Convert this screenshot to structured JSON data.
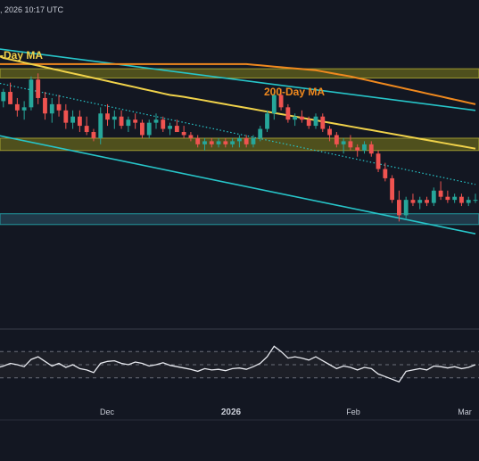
{
  "header": {
    "timestamp": ", 2026 10:17 UTC"
  },
  "chart_data": {
    "type": "candlestick",
    "ma_labels": {
      "ma100": "-Day MA",
      "ma200": "200-Day MA"
    },
    "x_ticks": [
      "Dec",
      "2026",
      "Feb",
      "Mar"
    ],
    "colors": {
      "background": "#131722",
      "bull": "#26a69a",
      "bear": "#ef5350",
      "ma100": "#f0d24a",
      "ma200": "#f0891e",
      "channel": "#27c5c9",
      "zone_fill": "#5b5a1c",
      "zone_border": "#c9c03a",
      "support_zone_fill": "#26495a",
      "rsi_line": "#e8eaf0",
      "rsi_fill": "#1d1f27",
      "grid_dash": "#6b6f7a",
      "axis_text": "#c8ccd6"
    },
    "price_range": [
      0,
      100
    ],
    "zones": [
      {
        "name": "resistance-zone",
        "from": 80.5,
        "to": 83.5
      },
      {
        "name": "mid-zone",
        "from": 57,
        "to": 61
      },
      {
        "name": "support-zone",
        "from": 33,
        "to": 36.5
      }
    ],
    "candles": [
      [
        75,
        78,
        70,
        73
      ],
      [
        73,
        77,
        71,
        76
      ],
      [
        76,
        79,
        72,
        72
      ],
      [
        72,
        74,
        68,
        70
      ],
      [
        70,
        73,
        67,
        71
      ],
      [
        71,
        81,
        70,
        80
      ],
      [
        80,
        82,
        72,
        74
      ],
      [
        74,
        76,
        67,
        69
      ],
      [
        69,
        74,
        66,
        72
      ],
      [
        72,
        75,
        68,
        70
      ],
      [
        70,
        72,
        64,
        66
      ],
      [
        66,
        70,
        64,
        68
      ],
      [
        68,
        70,
        63,
        65
      ],
      [
        65,
        68,
        62,
        63
      ],
      [
        63,
        64,
        60,
        61
      ],
      [
        61,
        71,
        59,
        69
      ],
      [
        69,
        72,
        65,
        67
      ],
      [
        67,
        70,
        64,
        68
      ],
      [
        68,
        70,
        64,
        65
      ],
      [
        65,
        68,
        63,
        67
      ],
      [
        67,
        69,
        64,
        66
      ],
      [
        66,
        67,
        61,
        62
      ],
      [
        62,
        67,
        61,
        66
      ],
      [
        66,
        69,
        64,
        67
      ],
      [
        67,
        68,
        63,
        64
      ],
      [
        64,
        66,
        62,
        65
      ],
      [
        65,
        67,
        63,
        63
      ],
      [
        63,
        65,
        61,
        62
      ],
      [
        62,
        63,
        60,
        61
      ],
      [
        61,
        62,
        58,
        59
      ],
      [
        59,
        61,
        57,
        60
      ],
      [
        60,
        61,
        58,
        59
      ],
      [
        59,
        61,
        58,
        60
      ],
      [
        60,
        61,
        58,
        59
      ],
      [
        59,
        61,
        58,
        60
      ],
      [
        60,
        62,
        58,
        61
      ],
      [
        61,
        62,
        58,
        59
      ],
      [
        59,
        62,
        58,
        61
      ],
      [
        61,
        65,
        60,
        64
      ],
      [
        64,
        70,
        63,
        69
      ],
      [
        69,
        76,
        67,
        75
      ],
      [
        75,
        77,
        70,
        71
      ],
      [
        71,
        72,
        66,
        67
      ],
      [
        67,
        69,
        65,
        68
      ],
      [
        68,
        70,
        66,
        67
      ],
      [
        67,
        68,
        64,
        65
      ],
      [
        65,
        69,
        64,
        68
      ],
      [
        68,
        69,
        63,
        64
      ],
      [
        64,
        65,
        60,
        62
      ],
      [
        62,
        63,
        58,
        59
      ],
      [
        59,
        61,
        56,
        60
      ],
      [
        60,
        62,
        57,
        58
      ],
      [
        58,
        59,
        55,
        57
      ],
      [
        57,
        60,
        56,
        59
      ],
      [
        59,
        60,
        55,
        56
      ],
      [
        56,
        57,
        50,
        51
      ],
      [
        51,
        53,
        47,
        48
      ],
      [
        48,
        49,
        40,
        41
      ],
      [
        41,
        44,
        34,
        36
      ],
      [
        36,
        42,
        35,
        41
      ],
      [
        41,
        43,
        39,
        40
      ],
      [
        40,
        42,
        38,
        41
      ],
      [
        41,
        42,
        39,
        40
      ],
      [
        40,
        45,
        39,
        44
      ],
      [
        44,
        47,
        41,
        42
      ],
      [
        42,
        44,
        40,
        41
      ],
      [
        41,
        43,
        40,
        42
      ],
      [
        42,
        43,
        39,
        40
      ],
      [
        40,
        42,
        39,
        41
      ],
      [
        41,
        43,
        40,
        41
      ]
    ],
    "channel_lines": [
      {
        "name": "upper-channel-line",
        "points": [
          [
            0,
            90
          ],
          [
            69,
            70
          ]
        ]
      },
      {
        "name": "lower-channel-line",
        "points": [
          [
            0,
            62
          ],
          [
            69,
            30
          ]
        ]
      }
    ],
    "dotted_trendline": {
      "points": [
        [
          0,
          79
        ],
        [
          69,
          46
        ]
      ]
    },
    "ma100": [
      88,
      87,
      86.5,
      86,
      85.5,
      85,
      84.5,
      84,
      83.5,
      83,
      82.5,
      82,
      81.5,
      81,
      80.5,
      80,
      79.5,
      79,
      78.5,
      78,
      77.5,
      77,
      76.5,
      76,
      75.5,
      75,
      74.7,
      74.4,
      74,
      73.6,
      73.2,
      72.8,
      72.4,
      72,
      71.6,
      71.2,
      70.8,
      70.4,
      70,
      69.6,
      69.2,
      68.8,
      68.4,
      68,
      67.6,
      67.2,
      66.8,
      66.4,
      66,
      65.6,
      65.2,
      64.8,
      64.4,
      64,
      63.6,
      63.2,
      62.8,
      62.4,
      62,
      61.6,
      61.2,
      60.8,
      60.4,
      60,
      59.6,
      59.2,
      58.8,
      58.4,
      58,
      57.6
    ],
    "ma200": [
      85,
      85,
      85,
      85,
      85,
      85,
      85,
      85,
      85,
      85,
      85,
      85,
      85,
      85,
      85,
      85,
      85,
      85,
      85,
      85,
      85,
      85,
      85,
      85,
      85,
      85,
      85,
      85,
      85,
      85,
      85,
      85,
      85,
      85,
      85,
      85,
      85,
      84.8,
      84.6,
      84.4,
      84.2,
      84,
      83.8,
      83.6,
      83.4,
      83.2,
      83,
      82.6,
      82.2,
      81.8,
      81.4,
      81,
      80.5,
      80,
      79.5,
      79,
      78.5,
      78,
      77.5,
      77,
      76.5,
      76,
      75.5,
      75,
      74.5,
      74,
      73.5,
      73,
      72.5,
      72
    ],
    "rsi": {
      "range": [
        0,
        100
      ],
      "levels": [
        70,
        50,
        30
      ],
      "values": [
        45,
        48,
        52,
        50,
        47,
        58,
        62,
        55,
        48,
        52,
        46,
        50,
        44,
        42,
        38,
        52,
        55,
        56,
        52,
        50,
        54,
        52,
        48,
        50,
        53,
        49,
        47,
        45,
        43,
        40,
        44,
        42,
        43,
        41,
        44,
        45,
        43,
        47,
        52,
        62,
        78,
        70,
        60,
        62,
        60,
        57,
        62,
        56,
        50,
        44,
        48,
        46,
        42,
        46,
        44,
        36,
        32,
        28,
        24,
        40,
        42,
        44,
        42,
        48,
        47,
        45,
        47,
        44,
        46,
        50
      ]
    }
  }
}
